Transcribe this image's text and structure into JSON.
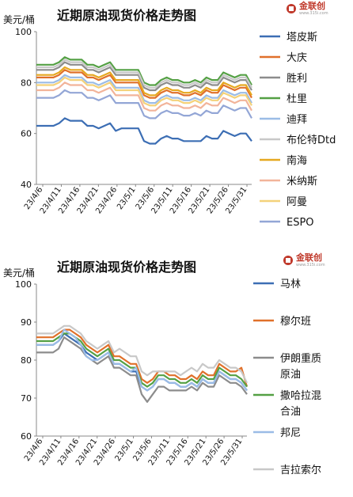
{
  "chart_data": [
    {
      "type": "line",
      "title": "近期原油现货价格走势图",
      "ylabel": "美元/桶",
      "ylim": [
        40,
        100
      ],
      "yticks": [
        40,
        60,
        80,
        100
      ],
      "xlabels": [
        "23/4/6",
        "23/4/11",
        "23/4/16",
        "23/4/21",
        "23/4/26",
        "23/5/1",
        "23/5/6",
        "23/5/11",
        "23/5/16",
        "23/5/21",
        "23/5/26",
        "23/5/31"
      ],
      "grid": false,
      "legend_position": "right",
      "series": [
        {
          "name": "塔皮斯",
          "color": "#3c6eb4",
          "values": [
            63,
            63,
            63,
            63,
            64,
            66,
            65,
            65,
            65,
            63,
            63,
            62,
            63,
            64,
            61,
            62,
            62,
            62,
            62,
            57,
            56,
            56,
            58,
            59,
            58,
            58,
            57,
            57,
            57,
            57,
            59,
            58,
            58,
            61,
            60,
            59,
            60,
            60,
            57
          ]
        },
        {
          "name": "大庆",
          "color": "#e0702a",
          "values": [
            82,
            82,
            82,
            82,
            83,
            85,
            84,
            84,
            84,
            82,
            82,
            81,
            82,
            83,
            80,
            80,
            80,
            80,
            80,
            75,
            74,
            74,
            76,
            77,
            76,
            76,
            75,
            75,
            76,
            75,
            77,
            76,
            76,
            79,
            78,
            77,
            78,
            78,
            74
          ]
        },
        {
          "name": "胜利",
          "color": "#8c8c8c",
          "values": [
            85,
            85,
            85,
            85,
            86,
            88,
            87,
            87,
            87,
            85,
            85,
            84,
            85,
            86,
            83,
            83,
            83,
            83,
            83,
            78,
            77,
            77,
            79,
            80,
            79,
            79,
            78,
            78,
            79,
            78,
            80,
            79,
            79,
            82,
            81,
            80,
            81,
            81,
            77
          ]
        },
        {
          "name": "杜里",
          "color": "#54a044",
          "values": [
            87,
            87,
            87,
            87,
            88,
            90,
            89,
            89,
            89,
            87,
            87,
            86,
            87,
            88,
            85,
            85,
            85,
            85,
            85,
            80,
            79,
            79,
            81,
            82,
            81,
            81,
            80,
            80,
            81,
            80,
            82,
            81,
            81,
            84,
            83,
            82,
            83,
            83,
            79
          ]
        },
        {
          "name": "迪拜",
          "color": "#9bbce6",
          "values": [
            80,
            80,
            80,
            80,
            81,
            83,
            82,
            82,
            82,
            80,
            80,
            79,
            80,
            81,
            78,
            78,
            78,
            78,
            78,
            73,
            72,
            72,
            74,
            75,
            74,
            74,
            73,
            73,
            74,
            73,
            75,
            74,
            74,
            77,
            76,
            75,
            76,
            76,
            72
          ]
        },
        {
          "name": "布伦特Dtd",
          "color": "#c8c8c8",
          "values": [
            86,
            86,
            86,
            86,
            87,
            89,
            88,
            88,
            88,
            86,
            86,
            85,
            86,
            87,
            84,
            84,
            84,
            84,
            84,
            79,
            78,
            78,
            80,
            81,
            80,
            80,
            79,
            79,
            80,
            79,
            81,
            80,
            80,
            83,
            82,
            81,
            82,
            82,
            78
          ]
        },
        {
          "name": "南海",
          "color": "#e6a820",
          "values": [
            83,
            83,
            83,
            83,
            84,
            86,
            85,
            85,
            85,
            83,
            83,
            82,
            83,
            84,
            81,
            81,
            81,
            81,
            81,
            76,
            75,
            75,
            77,
            78,
            77,
            77,
            76,
            76,
            77,
            76,
            78,
            77,
            77,
            80,
            79,
            78,
            79,
            79,
            75
          ]
        },
        {
          "name": "米纳斯",
          "color": "#f2b49a",
          "values": [
            77,
            77,
            77,
            77,
            78,
            80,
            79,
            79,
            79,
            77,
            77,
            76,
            77,
            78,
            75,
            75,
            75,
            75,
            75,
            70,
            69,
            69,
            71,
            72,
            71,
            71,
            70,
            70,
            71,
            70,
            72,
            71,
            71,
            74,
            73,
            72,
            73,
            73,
            69
          ]
        },
        {
          "name": "阿曼",
          "color": "#f4d27a",
          "values": [
            79,
            79,
            79,
            79,
            80,
            82,
            81,
            81,
            81,
            79,
            79,
            78,
            79,
            80,
            77,
            77,
            77,
            77,
            77,
            72,
            71,
            71,
            73,
            74,
            73,
            73,
            72,
            72,
            73,
            72,
            74,
            73,
            73,
            76,
            75,
            74,
            75,
            75,
            71
          ]
        },
        {
          "name": "ESPO",
          "color": "#93a6d6",
          "values": [
            74,
            74,
            74,
            74,
            75,
            77,
            76,
            76,
            76,
            74,
            74,
            73,
            74,
            75,
            72,
            72,
            72,
            72,
            72,
            67,
            66,
            66,
            68,
            69,
            68,
            68,
            67,
            67,
            68,
            67,
            69,
            68,
            68,
            71,
            70,
            69,
            70,
            70,
            66
          ]
        }
      ]
    },
    {
      "type": "line",
      "title": "近期原油现货价格走势图",
      "ylabel": "美元/桶",
      "ylim": [
        60,
        100
      ],
      "yticks": [
        60,
        70,
        80,
        90,
        100
      ],
      "xlabels": [
        "23/4/6",
        "23/4/11",
        "23/4/16",
        "23/4/21",
        "23/4/26",
        "23/5/1",
        "23/5/6",
        "23/5/11",
        "23/5/16",
        "23/5/21",
        "23/5/26",
        "23/5/31"
      ],
      "grid": false,
      "legend_position": "right",
      "series": [
        {
          "name": "马林",
          "color": "#3c6eb4",
          "values": [
            84,
            84,
            84,
            84,
            85,
            87,
            86,
            85,
            84,
            82,
            81,
            80,
            81,
            82,
            79,
            79,
            78,
            77,
            77,
            73,
            72,
            73,
            75,
            75,
            74,
            74,
            73,
            73,
            74,
            73,
            75,
            74,
            74,
            77,
            76,
            75,
            75,
            74,
            72
          ]
        },
        {
          "name": "穆尔班",
          "color": "#e0702a",
          "values": [
            86,
            86,
            86,
            86,
            87,
            88,
            88,
            87,
            86,
            84,
            83,
            82,
            83,
            84,
            81,
            81,
            80,
            79,
            79,
            75,
            74,
            75,
            77,
            77,
            76,
            76,
            75,
            75,
            76,
            75,
            77,
            76,
            76,
            79,
            78,
            77,
            77,
            78,
            73
          ]
        },
        {
          "name": "伊朗重质原油",
          "color": "#8c8c8c",
          "values": [
            82,
            82,
            82,
            82,
            83,
            86,
            85,
            84,
            83,
            81,
            80,
            79,
            80,
            81,
            78,
            78,
            77,
            76,
            76,
            71,
            69,
            71,
            73,
            73,
            72,
            72,
            72,
            72,
            73,
            72,
            74,
            73,
            73,
            76,
            75,
            74,
            74,
            73,
            71
          ]
        },
        {
          "name": "撒哈拉混合油",
          "color": "#54a044",
          "values": [
            85,
            85,
            85,
            85,
            86,
            87,
            87,
            86,
            85,
            83,
            82,
            81,
            82,
            83,
            80,
            80,
            79,
            78,
            78,
            74,
            73,
            74,
            76,
            76,
            75,
            75,
            74,
            74,
            75,
            74,
            76,
            75,
            75,
            78,
            77,
            76,
            76,
            75,
            73
          ]
        },
        {
          "name": "邦尼",
          "color": "#9bbce6",
          "values": [
            84,
            84,
            84,
            84,
            85,
            88,
            87,
            86,
            84,
            81,
            80,
            80,
            81,
            82,
            79,
            79,
            78,
            77,
            78,
            73,
            72,
            73,
            75,
            75,
            74,
            74,
            73,
            73,
            74,
            73,
            75,
            74,
            74,
            77,
            76,
            75,
            75,
            74,
            72
          ]
        },
        {
          "name": "吉拉索尔",
          "color": "#c8c8c8",
          "values": [
            87,
            87,
            87,
            87,
            88,
            89,
            89,
            88,
            87,
            85,
            84,
            83,
            84,
            85,
            82,
            83,
            82,
            81,
            81,
            77,
            76,
            77,
            77,
            77,
            77,
            77,
            76,
            77,
            78,
            77,
            79,
            78,
            78,
            80,
            79,
            78,
            78,
            77,
            74
          ]
        }
      ]
    }
  ],
  "logo": {
    "text": "金联创",
    "sub": "www.315i.com"
  }
}
